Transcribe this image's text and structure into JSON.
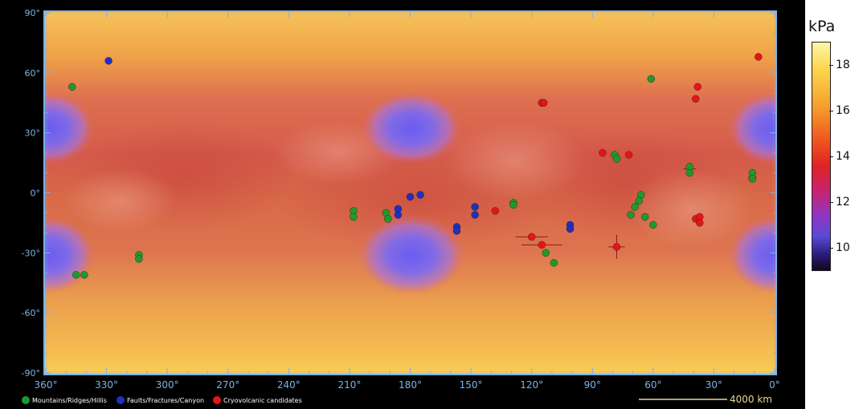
{
  "map": {
    "lat_labels": [
      "90°",
      "60°",
      "30°",
      "0°",
      "-30°",
      "-60°",
      "-90°"
    ],
    "lon_labels": [
      "360°",
      "330°",
      "300°",
      "270°",
      "240°",
      "210°",
      "180°",
      "150°",
      "120°",
      "90°",
      "60°",
      "30°",
      "0°"
    ],
    "scale_label": "4000 km",
    "legend": [
      {
        "label": "Mountains/Ridges/Hillis",
        "color": "#1f9a2a"
      },
      {
        "label": "Faults/Fractures/Canyon",
        "color": "#1f2fbf"
      },
      {
        "label": "Cryovolcanic candidates",
        "color": "#e81414"
      }
    ],
    "features": [
      {
        "type": "mountain",
        "lon": 347,
        "lat": 53
      },
      {
        "type": "mountain",
        "lon": 61,
        "lat": 57
      },
      {
        "type": "mountain",
        "lon": 79,
        "lat": 19
      },
      {
        "type": "mountain",
        "lon": 78,
        "lat": 17
      },
      {
        "type": "mountain",
        "lon": 42,
        "lat": 13
      },
      {
        "type": "mountain",
        "lon": 42,
        "lat": 10
      },
      {
        "type": "mountain",
        "lon": 11,
        "lat": 10
      },
      {
        "type": "mountain",
        "lon": 11,
        "lat": 7
      },
      {
        "type": "mountain",
        "lon": 208,
        "lat": -9
      },
      {
        "type": "mountain",
        "lon": 208,
        "lat": -12
      },
      {
        "type": "mountain",
        "lon": 192,
        "lat": -10
      },
      {
        "type": "mountain",
        "lon": 191,
        "lat": -13
      },
      {
        "type": "mountain",
        "lon": 129,
        "lat": -5
      },
      {
        "type": "mountain",
        "lon": 129,
        "lat": -6
      },
      {
        "type": "mountain",
        "lon": 66,
        "lat": -1
      },
      {
        "type": "mountain",
        "lon": 67,
        "lat": -4
      },
      {
        "type": "mountain",
        "lon": 69,
        "lat": -7
      },
      {
        "type": "mountain",
        "lon": 71,
        "lat": -11
      },
      {
        "type": "mountain",
        "lon": 64,
        "lat": -12
      },
      {
        "type": "mountain",
        "lon": 60,
        "lat": -16
      },
      {
        "type": "mountain",
        "lon": 314,
        "lat": -31
      },
      {
        "type": "mountain",
        "lon": 314,
        "lat": -33
      },
      {
        "type": "mountain",
        "lon": 345,
        "lat": -41
      },
      {
        "type": "mountain",
        "lon": 341,
        "lat": -41
      },
      {
        "type": "mountain",
        "lon": 113,
        "lat": -30
      },
      {
        "type": "mountain",
        "lon": 109,
        "lat": -35
      },
      {
        "type": "fault",
        "lon": 329,
        "lat": 66
      },
      {
        "type": "fault",
        "lon": 186,
        "lat": -8
      },
      {
        "type": "fault",
        "lon": 186,
        "lat": -11
      },
      {
        "type": "fault",
        "lon": 180,
        "lat": -2
      },
      {
        "type": "fault",
        "lon": 175,
        "lat": -1
      },
      {
        "type": "fault",
        "lon": 148,
        "lat": -7
      },
      {
        "type": "fault",
        "lon": 148,
        "lat": -11
      },
      {
        "type": "fault",
        "lon": 157,
        "lat": -17
      },
      {
        "type": "fault",
        "lon": 157,
        "lat": -19
      },
      {
        "type": "fault",
        "lon": 101,
        "lat": -16
      },
      {
        "type": "fault",
        "lon": 101,
        "lat": -18
      },
      {
        "type": "cryovolcano",
        "lon": 8,
        "lat": 68
      },
      {
        "type": "cryovolcano",
        "lon": 38,
        "lat": 53
      },
      {
        "type": "cryovolcano",
        "lon": 39,
        "lat": 47
      },
      {
        "type": "cryovolcano",
        "lon": 115,
        "lat": 45
      },
      {
        "type": "cryovolcano",
        "lon": 114,
        "lat": 45
      },
      {
        "type": "cryovolcano",
        "lon": 85,
        "lat": 20
      },
      {
        "type": "cryovolcano",
        "lon": 72,
        "lat": 19
      },
      {
        "type": "cryovolcano",
        "lon": 138,
        "lat": -9
      },
      {
        "type": "cryovolcano",
        "lon": 39,
        "lat": -13
      },
      {
        "type": "cryovolcano",
        "lon": 37,
        "lat": -12
      },
      {
        "type": "cryovolcano",
        "lon": 37,
        "lat": -15
      },
      {
        "type": "cryovolcano",
        "lon": 120,
        "lat": -22
      },
      {
        "type": "cryovolcano",
        "lon": 115,
        "lat": -26
      },
      {
        "type": "cryovolcano",
        "lon": 78,
        "lat": -27
      }
    ],
    "colors": {
      "mountain": "#1f9a2a",
      "fault": "#1f2fbf",
      "cryovolcano": "#e81414",
      "axis_text": "#7fb2e5"
    }
  },
  "colorbar": {
    "title": "kPa",
    "ticks": [
      18,
      16,
      14,
      12,
      10
    ],
    "range": [
      9,
      19
    ]
  }
}
